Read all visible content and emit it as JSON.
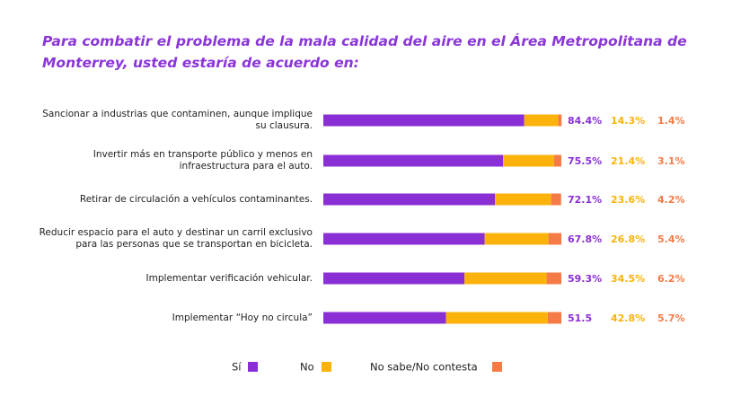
{
  "chart_data": {
    "type": "stacked-bar-horizontal",
    "title": "Para combatir el problema de la mala calidad del aire en el Área Metropolitana de Monterrey, usted estaría de acuerdo en:",
    "categories": [
      "Sancionar a industrias que contaminen, aunque implique su clausura.",
      "Invertir más en transporte público y menos en infraestructura para el auto.",
      "Retirar de circulación a vehículos contaminantes.",
      "Reducir espacio para el auto y destinar un carril exclusivo para las personas que se transportan en bicicleta.",
      "Implementar verificación vehicular.",
      "Implementar “Hoy no circula”"
    ],
    "series": [
      {
        "name": "Sí",
        "color": "#8a2fd6",
        "values": [
          84.4,
          75.5,
          72.1,
          67.8,
          59.3,
          51.5
        ],
        "value_labels": [
          "84.4%",
          "75.5%",
          "72.1%",
          "67.8%",
          "59.3%",
          "51.5"
        ]
      },
      {
        "name": "No",
        "color": "#fbb30c",
        "values": [
          14.3,
          21.4,
          23.6,
          26.8,
          34.5,
          42.8
        ],
        "value_labels": [
          "14.3%",
          "21.4%",
          "23.6%",
          "26.8%",
          "34.5%",
          "42.8%"
        ]
      },
      {
        "name": "No sabe/No contesta",
        "color": "#f47b45",
        "values": [
          1.4,
          3.1,
          4.2,
          5.4,
          6.2,
          5.7
        ],
        "value_labels": [
          "1.4%",
          "3.1%",
          "4.2%",
          "5.4%",
          "6.2%",
          "5.7%"
        ]
      }
    ]
  }
}
